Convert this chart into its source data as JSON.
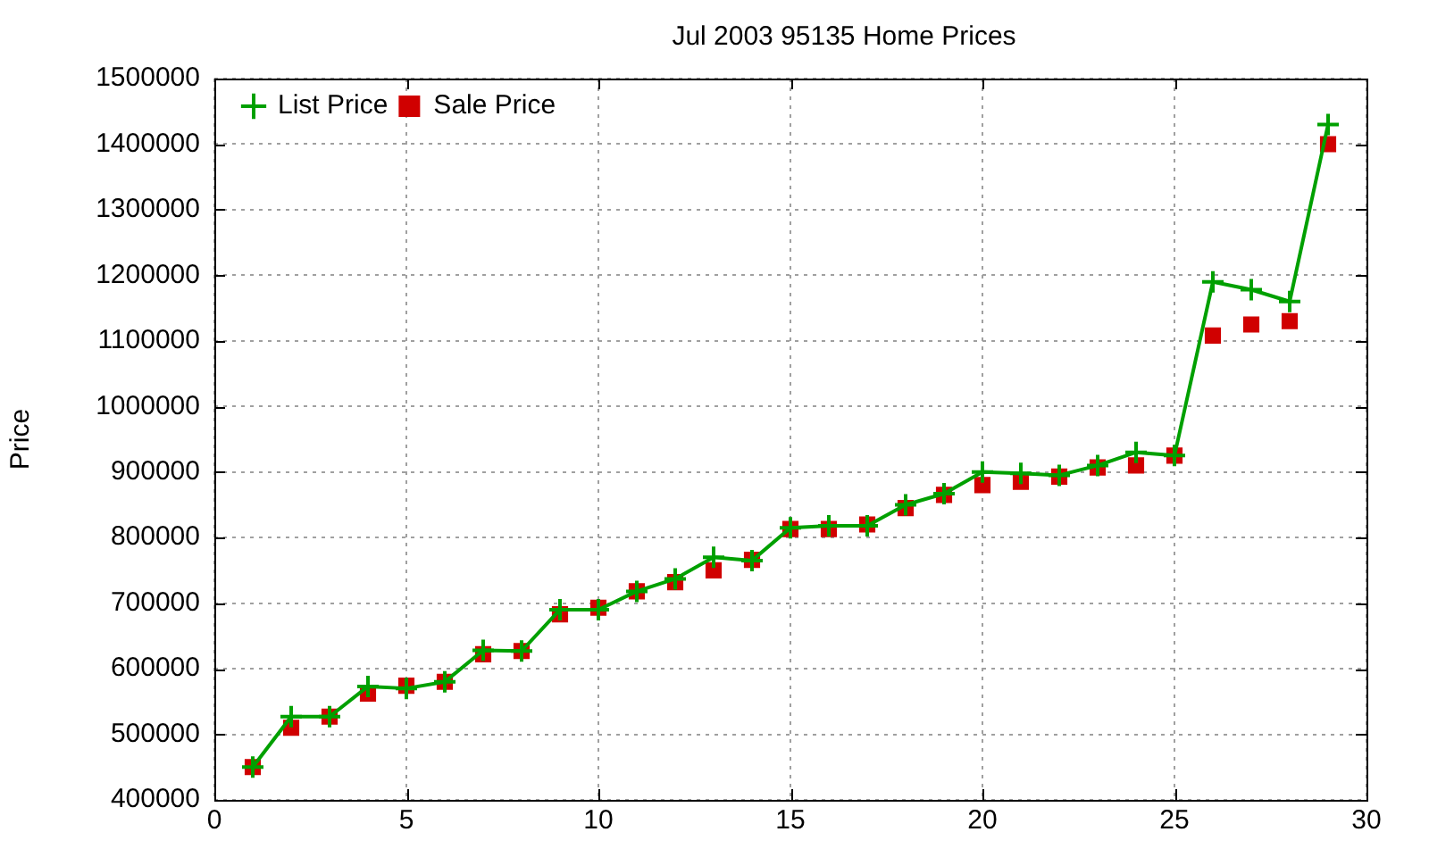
{
  "chart_data": {
    "type": "line",
    "title": "Jul 2003 95135 Home Prices",
    "ylabel": "Price",
    "x": [
      1,
      2,
      3,
      4,
      5,
      6,
      7,
      8,
      9,
      10,
      11,
      12,
      13,
      14,
      15,
      16,
      17,
      18,
      19,
      20,
      21,
      22,
      23,
      24,
      25,
      26,
      27,
      28,
      29
    ],
    "xlim": [
      0,
      30
    ],
    "xticks": [
      0,
      5,
      10,
      15,
      20,
      25,
      30
    ],
    "ylim": [
      400000,
      1500000
    ],
    "yticks": [
      400000,
      500000,
      600000,
      700000,
      800000,
      900000,
      1000000,
      1100000,
      1200000,
      1300000,
      1400000,
      1500000
    ],
    "grid": true,
    "legend": "top left",
    "series": [
      {
        "name": "List Price",
        "color": "#00a000",
        "marker": "cross",
        "line_style": "solid",
        "values": [
          450000,
          527000,
          527000,
          573000,
          570000,
          580000,
          628000,
          627000,
          690000,
          690000,
          718000,
          737000,
          770000,
          765000,
          815000,
          818000,
          818000,
          850000,
          867000,
          900000,
          898000,
          895000,
          910000,
          930000,
          925000,
          1190000,
          1178000,
          1160000,
          1430000
        ]
      },
      {
        "name": "Sale Price",
        "type": "scatter",
        "color": "#d00000",
        "marker": "square",
        "values": [
          450000,
          510000,
          527000,
          562000,
          574000,
          580000,
          622000,
          627000,
          683000,
          693000,
          718000,
          732000,
          750000,
          766000,
          813000,
          813000,
          820000,
          845000,
          865000,
          880000,
          885000,
          893000,
          907000,
          910000,
          925000,
          1108000,
          1125000,
          1130000,
          1400000
        ]
      }
    ]
  }
}
